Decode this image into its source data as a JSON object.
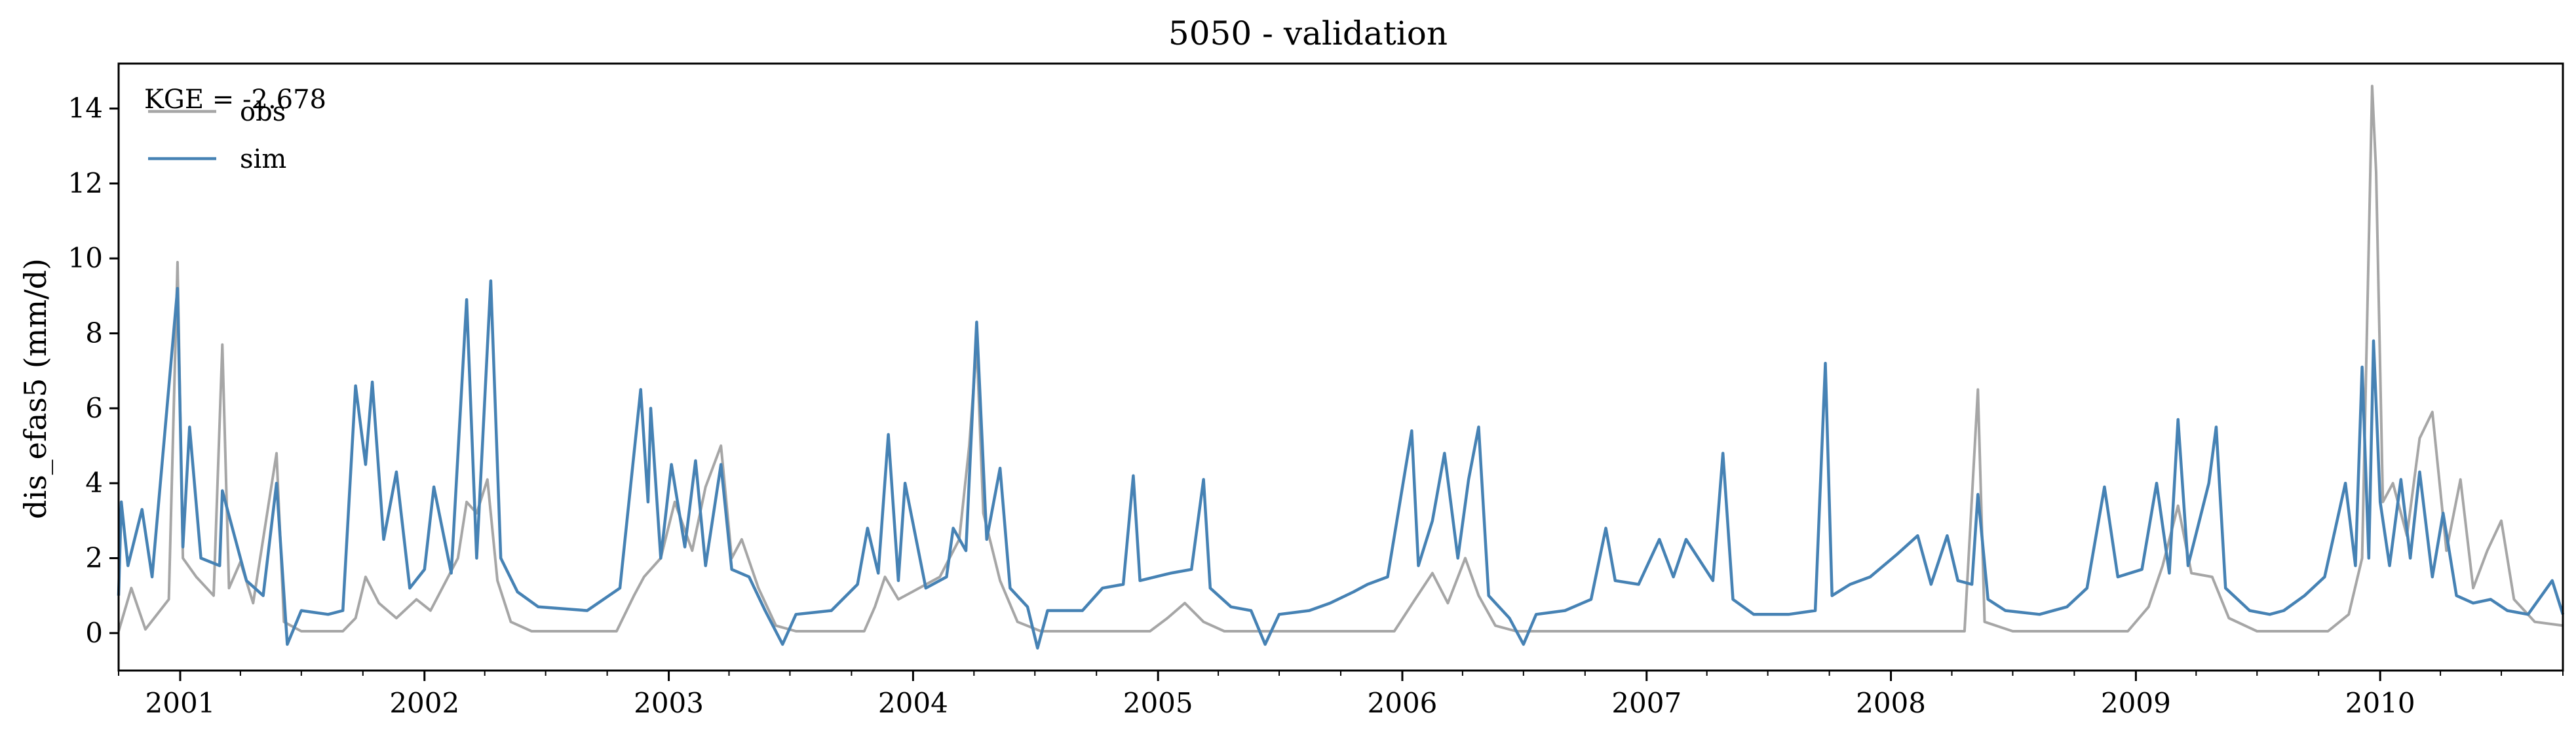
{
  "chart_data": {
    "type": "line",
    "title": "5050 - validation",
    "xlabel": "",
    "ylabel": "dis_efas5 (mm/d)",
    "x_range": [
      "2000-10-01",
      "2010-10-01"
    ],
    "ylim": [
      -1,
      15.2
    ],
    "y_ticks": [
      0,
      2,
      4,
      6,
      8,
      10,
      12,
      14
    ],
    "x_ticks": [
      {
        "date": "2001-01-01",
        "label": "2001"
      },
      {
        "date": "2002-01-01",
        "label": "2002"
      },
      {
        "date": "2003-01-01",
        "label": "2003"
      },
      {
        "date": "2004-01-01",
        "label": "2004"
      },
      {
        "date": "2005-01-01",
        "label": "2005"
      },
      {
        "date": "2006-01-01",
        "label": "2006"
      },
      {
        "date": "2007-01-01",
        "label": "2007"
      },
      {
        "date": "2008-01-01",
        "label": "2008"
      },
      {
        "date": "2009-01-01",
        "label": "2009"
      },
      {
        "date": "2010-01-01",
        "label": "2010"
      }
    ],
    "grid": false,
    "legend_position": "top-left",
    "annotation": "KGE = -2.678",
    "series": [
      {
        "name": "obs",
        "color": "#a6a6a6",
        "points": [
          [
            "2000-10-01",
            0.05
          ],
          [
            "2000-10-20",
            1.2
          ],
          [
            "2000-11-10",
            0.1
          ],
          [
            "2000-12-15",
            0.9
          ],
          [
            "2000-12-28",
            9.9
          ],
          [
            "2001-01-05",
            2.0
          ],
          [
            "2001-01-25",
            1.5
          ],
          [
            "2001-02-20",
            1.0
          ],
          [
            "2001-03-05",
            7.7
          ],
          [
            "2001-03-15",
            1.2
          ],
          [
            "2001-04-01",
            1.9
          ],
          [
            "2001-04-20",
            0.8
          ],
          [
            "2001-05-25",
            4.8
          ],
          [
            "2001-06-05",
            0.3
          ],
          [
            "2001-07-01",
            0.05
          ],
          [
            "2001-09-01",
            0.05
          ],
          [
            "2001-09-20",
            0.4
          ],
          [
            "2001-10-05",
            1.5
          ],
          [
            "2001-10-25",
            0.8
          ],
          [
            "2001-11-20",
            0.4
          ],
          [
            "2001-12-20",
            0.9
          ],
          [
            "2002-01-10",
            0.6
          ],
          [
            "2002-02-20",
            2.0
          ],
          [
            "2002-03-05",
            3.5
          ],
          [
            "2002-03-20",
            3.2
          ],
          [
            "2002-04-05",
            4.1
          ],
          [
            "2002-04-20",
            1.4
          ],
          [
            "2002-05-10",
            0.3
          ],
          [
            "2002-06-10",
            0.05
          ],
          [
            "2002-10-15",
            0.05
          ],
          [
            "2002-11-10",
            1.0
          ],
          [
            "2002-11-25",
            1.5
          ],
          [
            "2002-12-20",
            2.0
          ],
          [
            "2003-01-10",
            3.5
          ],
          [
            "2003-02-05",
            2.2
          ],
          [
            "2003-02-25",
            3.9
          ],
          [
            "2003-03-20",
            5.0
          ],
          [
            "2003-04-05",
            2.0
          ],
          [
            "2003-04-20",
            2.5
          ],
          [
            "2003-05-15",
            1.2
          ],
          [
            "2003-06-10",
            0.2
          ],
          [
            "2003-07-10",
            0.05
          ],
          [
            "2003-10-20",
            0.05
          ],
          [
            "2003-11-05",
            0.7
          ],
          [
            "2003-11-20",
            1.5
          ],
          [
            "2003-12-10",
            0.9
          ],
          [
            "2004-02-10",
            1.5
          ],
          [
            "2004-03-10",
            2.5
          ],
          [
            "2004-03-25",
            5.0
          ],
          [
            "2004-04-05",
            7.7
          ],
          [
            "2004-04-15",
            3.2
          ],
          [
            "2004-05-10",
            1.4
          ],
          [
            "2004-06-05",
            0.3
          ],
          [
            "2004-07-10",
            0.05
          ],
          [
            "2004-12-20",
            0.05
          ],
          [
            "2005-01-15",
            0.4
          ],
          [
            "2005-02-10",
            0.8
          ],
          [
            "2005-03-10",
            0.3
          ],
          [
            "2005-04-10",
            0.05
          ],
          [
            "2005-12-20",
            0.05
          ],
          [
            "2006-01-20",
            0.9
          ],
          [
            "2006-02-15",
            1.6
          ],
          [
            "2006-03-10",
            0.8
          ],
          [
            "2006-04-05",
            2.0
          ],
          [
            "2006-04-25",
            1.0
          ],
          [
            "2006-05-20",
            0.2
          ],
          [
            "2006-06-20",
            0.05
          ],
          [
            "2006-12-20",
            0.05
          ],
          [
            "2007-03-10",
            0.05
          ],
          [
            "2007-05-10",
            0.05
          ],
          [
            "2007-06-10",
            0.05
          ],
          [
            "2008-01-01",
            0.05
          ],
          [
            "2008-04-20",
            0.05
          ],
          [
            "2008-05-10",
            6.5
          ],
          [
            "2008-05-20",
            0.3
          ],
          [
            "2008-07-01",
            0.05
          ],
          [
            "2008-12-20",
            0.05
          ],
          [
            "2009-01-20",
            0.7
          ],
          [
            "2009-02-10",
            1.8
          ],
          [
            "2009-03-05",
            3.4
          ],
          [
            "2009-03-25",
            1.6
          ],
          [
            "2009-04-25",
            1.5
          ],
          [
            "2009-05-20",
            0.4
          ],
          [
            "2009-07-01",
            0.05
          ],
          [
            "2009-10-15",
            0.05
          ],
          [
            "2009-11-15",
            0.5
          ],
          [
            "2009-12-05",
            2.0
          ],
          [
            "2009-12-20",
            14.6
          ],
          [
            "2009-12-26",
            12.3
          ],
          [
            "2010-01-05",
            3.5
          ],
          [
            "2010-01-20",
            4.0
          ],
          [
            "2010-02-10",
            2.6
          ],
          [
            "2010-03-01",
            5.2
          ],
          [
            "2010-03-20",
            5.9
          ],
          [
            "2010-04-10",
            2.2
          ],
          [
            "2010-05-01",
            4.1
          ],
          [
            "2010-05-20",
            1.2
          ],
          [
            "2010-06-10",
            2.2
          ],
          [
            "2010-07-01",
            3.0
          ],
          [
            "2010-07-20",
            0.9
          ],
          [
            "2010-08-20",
            0.3
          ],
          [
            "2010-10-01",
            0.2
          ]
        ]
      },
      {
        "name": "sim",
        "color": "#4682b4",
        "points": [
          [
            "2000-10-01",
            1.0
          ],
          [
            "2000-10-05",
            3.5
          ],
          [
            "2000-10-15",
            1.8
          ],
          [
            "2000-11-05",
            3.3
          ],
          [
            "2000-11-20",
            1.5
          ],
          [
            "2000-12-28",
            9.2
          ],
          [
            "2001-01-05",
            2.3
          ],
          [
            "2001-01-15",
            5.5
          ],
          [
            "2001-02-01",
            2.0
          ],
          [
            "2001-03-01",
            1.8
          ],
          [
            "2001-03-05",
            3.8
          ],
          [
            "2001-04-10",
            1.4
          ],
          [
            "2001-05-05",
            1.0
          ],
          [
            "2001-05-25",
            4.0
          ],
          [
            "2001-06-10",
            -0.3
          ],
          [
            "2001-07-01",
            0.6
          ],
          [
            "2001-08-10",
            0.5
          ],
          [
            "2001-09-01",
            0.6
          ],
          [
            "2001-09-20",
            6.6
          ],
          [
            "2001-10-05",
            4.5
          ],
          [
            "2001-10-15",
            6.7
          ],
          [
            "2001-11-01",
            2.5
          ],
          [
            "2001-11-20",
            4.3
          ],
          [
            "2001-12-10",
            1.2
          ],
          [
            "2002-01-01",
            1.7
          ],
          [
            "2002-01-15",
            3.9
          ],
          [
            "2002-02-10",
            1.6
          ],
          [
            "2002-03-05",
            8.9
          ],
          [
            "2002-03-20",
            2.0
          ],
          [
            "2002-04-10",
            9.4
          ],
          [
            "2002-04-25",
            2.0
          ],
          [
            "2002-05-20",
            1.1
          ],
          [
            "2002-06-20",
            0.7
          ],
          [
            "2002-09-01",
            0.6
          ],
          [
            "2002-10-20",
            1.2
          ],
          [
            "2002-11-20",
            6.5
          ],
          [
            "2002-12-01",
            3.5
          ],
          [
            "2002-12-05",
            6.0
          ],
          [
            "2002-12-20",
            2.0
          ],
          [
            "2003-01-05",
            4.5
          ],
          [
            "2003-01-25",
            2.3
          ],
          [
            "2003-02-10",
            4.6
          ],
          [
            "2003-02-25",
            1.8
          ],
          [
            "2003-03-20",
            4.5
          ],
          [
            "2003-04-05",
            1.7
          ],
          [
            "2003-05-01",
            1.5
          ],
          [
            "2003-05-25",
            0.6
          ],
          [
            "2003-06-20",
            -0.3
          ],
          [
            "2003-07-10",
            0.5
          ],
          [
            "2003-09-01",
            0.6
          ],
          [
            "2003-10-10",
            1.3
          ],
          [
            "2003-10-25",
            2.8
          ],
          [
            "2003-11-10",
            1.6
          ],
          [
            "2003-11-25",
            5.3
          ],
          [
            "2003-12-10",
            1.4
          ],
          [
            "2003-12-20",
            4.0
          ],
          [
            "2004-01-20",
            1.2
          ],
          [
            "2004-02-20",
            1.5
          ],
          [
            "2004-03-01",
            2.8
          ],
          [
            "2004-03-20",
            2.2
          ],
          [
            "2004-04-05",
            8.3
          ],
          [
            "2004-04-20",
            2.5
          ],
          [
            "2004-05-10",
            4.4
          ],
          [
            "2004-05-25",
            1.2
          ],
          [
            "2004-06-20",
            0.7
          ],
          [
            "2004-07-05",
            -0.4
          ],
          [
            "2004-07-20",
            0.6
          ],
          [
            "2004-09-10",
            0.6
          ],
          [
            "2004-10-10",
            1.2
          ],
          [
            "2004-11-10",
            1.3
          ],
          [
            "2004-11-25",
            4.2
          ],
          [
            "2004-12-05",
            1.4
          ],
          [
            "2005-01-20",
            1.6
          ],
          [
            "2005-02-20",
            1.7
          ],
          [
            "2005-03-10",
            4.1
          ],
          [
            "2005-03-20",
            1.2
          ],
          [
            "2005-04-20",
            0.7
          ],
          [
            "2005-05-20",
            0.6
          ],
          [
            "2005-06-10",
            -0.3
          ],
          [
            "2005-07-01",
            0.5
          ],
          [
            "2005-08-15",
            0.6
          ],
          [
            "2005-09-15",
            0.8
          ],
          [
            "2005-10-20",
            1.1
          ],
          [
            "2005-11-10",
            1.3
          ],
          [
            "2005-12-10",
            1.5
          ],
          [
            "2006-01-15",
            5.4
          ],
          [
            "2006-01-25",
            1.8
          ],
          [
            "2006-02-15",
            3.0
          ],
          [
            "2006-03-05",
            4.8
          ],
          [
            "2006-03-25",
            2.0
          ],
          [
            "2006-04-10",
            4.1
          ],
          [
            "2006-04-25",
            5.5
          ],
          [
            "2006-05-10",
            1.0
          ],
          [
            "2006-06-10",
            0.4
          ],
          [
            "2006-07-01",
            -0.3
          ],
          [
            "2006-07-20",
            0.5
          ],
          [
            "2006-09-01",
            0.6
          ],
          [
            "2006-10-10",
            0.9
          ],
          [
            "2006-11-01",
            2.8
          ],
          [
            "2006-11-15",
            1.4
          ],
          [
            "2006-12-20",
            1.3
          ],
          [
            "2007-01-20",
            2.5
          ],
          [
            "2007-02-10",
            1.5
          ],
          [
            "2007-03-01",
            2.5
          ],
          [
            "2007-04-10",
            1.4
          ],
          [
            "2007-04-25",
            4.8
          ],
          [
            "2007-05-10",
            0.9
          ],
          [
            "2007-06-10",
            0.5
          ],
          [
            "2007-08-01",
            0.5
          ],
          [
            "2007-09-10",
            0.6
          ],
          [
            "2007-09-25",
            7.2
          ],
          [
            "2007-10-05",
            1.0
          ],
          [
            "2007-11-01",
            1.3
          ],
          [
            "2007-12-01",
            1.5
          ],
          [
            "2008-01-10",
            2.1
          ],
          [
            "2008-02-10",
            2.6
          ],
          [
            "2008-03-01",
            1.3
          ],
          [
            "2008-03-25",
            2.6
          ],
          [
            "2008-04-10",
            1.4
          ],
          [
            "2008-05-01",
            1.3
          ],
          [
            "2008-05-10",
            3.7
          ],
          [
            "2008-05-25",
            0.9
          ],
          [
            "2008-06-20",
            0.6
          ],
          [
            "2008-08-10",
            0.5
          ],
          [
            "2008-09-20",
            0.7
          ],
          [
            "2008-10-20",
            1.2
          ],
          [
            "2008-11-15",
            3.9
          ],
          [
            "2008-12-05",
            1.5
          ],
          [
            "2009-01-10",
            1.7
          ],
          [
            "2009-02-01",
            4.0
          ],
          [
            "2009-02-20",
            1.6
          ],
          [
            "2009-03-05",
            5.7
          ],
          [
            "2009-03-20",
            1.8
          ],
          [
            "2009-04-20",
            4.0
          ],
          [
            "2009-05-01",
            5.5
          ],
          [
            "2009-05-15",
            1.2
          ],
          [
            "2009-06-20",
            0.6
          ],
          [
            "2009-07-20",
            0.5
          ],
          [
            "2009-08-10",
            0.6
          ],
          [
            "2009-09-10",
            1.0
          ],
          [
            "2009-10-10",
            1.5
          ],
          [
            "2009-11-10",
            4.0
          ],
          [
            "2009-11-25",
            1.8
          ],
          [
            "2009-12-05",
            7.1
          ],
          [
            "2009-12-15",
            2.0
          ],
          [
            "2009-12-22",
            7.8
          ],
          [
            "2010-01-01",
            3.5
          ],
          [
            "2010-01-15",
            1.8
          ],
          [
            "2010-02-01",
            4.1
          ],
          [
            "2010-02-15",
            2.0
          ],
          [
            "2010-03-01",
            4.3
          ],
          [
            "2010-03-20",
            1.5
          ],
          [
            "2010-04-05",
            3.2
          ],
          [
            "2010-04-25",
            1.0
          ],
          [
            "2010-05-20",
            0.8
          ],
          [
            "2010-06-15",
            0.9
          ],
          [
            "2010-07-10",
            0.6
          ],
          [
            "2010-08-10",
            0.5
          ],
          [
            "2010-09-15",
            1.4
          ],
          [
            "2010-10-01",
            0.5
          ]
        ]
      }
    ]
  }
}
